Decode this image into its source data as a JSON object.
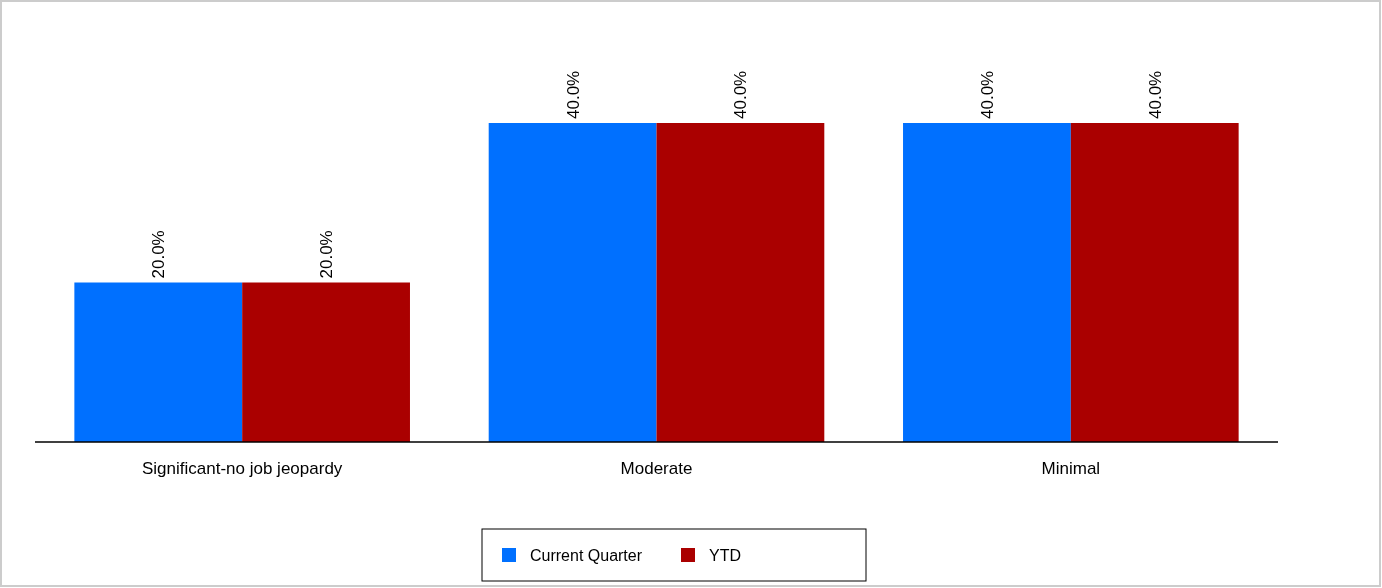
{
  "chart_data": {
    "type": "bar",
    "categories": [
      "Significant-no job jeopardy",
      "Moderate",
      "Minimal"
    ],
    "series": [
      {
        "name": "Current Quarter",
        "color": "#0070ff",
        "values": [
          20,
          40,
          40
        ],
        "value_labels": [
          "20.0%",
          "40.0%",
          "40.0%"
        ]
      },
      {
        "name": "YTD",
        "color": "#aa0000",
        "values": [
          20,
          40,
          40
        ],
        "value_labels": [
          "20.0%",
          "40.0%",
          "40.0%"
        ]
      }
    ],
    "legend": "bottom"
  }
}
